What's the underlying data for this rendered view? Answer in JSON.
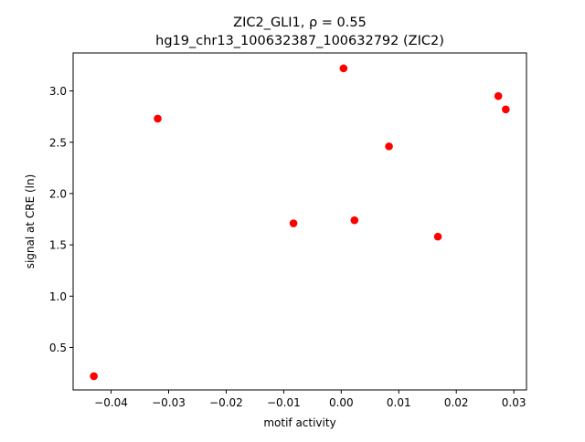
{
  "chart_data": {
    "type": "scatter",
    "title_line1": "ZIC2_GLI1, ρ = 0.55",
    "title_line2": "hg19_chr13_100632387_100632792 (ZIC2)",
    "xlabel": "motif activity",
    "ylabel": "signal at CRE (ln)",
    "xlim": [
      -0.0466,
      0.0322
    ],
    "ylim": [
      0.086,
      3.37
    ],
    "xticks": [
      -0.04,
      -0.03,
      -0.02,
      -0.01,
      0.0,
      0.01,
      0.02,
      0.03
    ],
    "xtick_labels": [
      "−0.04",
      "−0.03",
      "−0.02",
      "−0.01",
      "0.00",
      "0.01",
      "0.02",
      "0.03"
    ],
    "yticks": [
      0.5,
      1.0,
      1.5,
      2.0,
      2.5,
      3.0
    ],
    "ytick_labels": [
      "0.5",
      "1.0",
      "1.5",
      "2.0",
      "2.5",
      "3.0"
    ],
    "marker_color": "#ff0000",
    "grid": false,
    "points": [
      {
        "x": -0.043,
        "y": 0.22
      },
      {
        "x": -0.0319,
        "y": 2.73
      },
      {
        "x": -0.0083,
        "y": 1.71
      },
      {
        "x": 0.0004,
        "y": 3.22
      },
      {
        "x": 0.0023,
        "y": 1.74
      },
      {
        "x": 0.0083,
        "y": 2.46
      },
      {
        "x": 0.0168,
        "y": 1.58
      },
      {
        "x": 0.0273,
        "y": 2.95
      },
      {
        "x": 0.0286,
        "y": 2.82
      }
    ]
  }
}
